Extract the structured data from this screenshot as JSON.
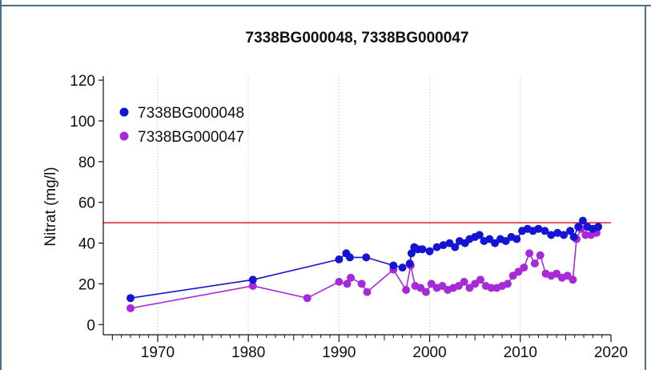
{
  "chart_data": {
    "type": "line",
    "title": "7338BG000048, 7338BG000047",
    "xlabel": "",
    "ylabel": "Nitrat (mg/l)",
    "xlim": [
      1964,
      2020
    ],
    "ylim": [
      -5,
      122
    ],
    "xticks": [
      1970,
      1980,
      1990,
      2000,
      2010,
      2020
    ],
    "yticks": [
      0,
      20,
      40,
      60,
      80,
      100,
      120
    ],
    "grid": "x-dotted",
    "legend_position": "top-left",
    "threshold": {
      "value": 50,
      "color": "#e02020"
    },
    "series": [
      {
        "name": "7338BG000048",
        "color": "#1414d2",
        "x": [
          1967,
          1980.5,
          1990,
          1990.8,
          1991.2,
          1993,
          1996,
          1997,
          1997.8,
          1998,
          1998.3,
          1998.7,
          1999.2,
          2000,
          2000.8,
          2001.5,
          2002.2,
          2002.8,
          2003.3,
          2003.9,
          2004.4,
          2005,
          2005.5,
          2006,
          2006.6,
          2007.2,
          2007.8,
          2008.4,
          2009,
          2009.6,
          2010.2,
          2010.8,
          2011.4,
          2012,
          2012.7,
          2013.4,
          2014.1,
          2014.8,
          2015.5,
          2015.9,
          2016.4,
          2016.9,
          2017.4,
          2018,
          2018.6
        ],
        "y": [
          13,
          22,
          32,
          35,
          33,
          33,
          29,
          28,
          30,
          35,
          38,
          37,
          37,
          36,
          38,
          39,
          40,
          38,
          41,
          40,
          42,
          43,
          44,
          41,
          42,
          40,
          42,
          41,
          43,
          42,
          46,
          47,
          46,
          47,
          46,
          44,
          45,
          44,
          46,
          43,
          48,
          51,
          48,
          47,
          48
        ]
      },
      {
        "name": "7338BG000047",
        "color": "#a72ad9",
        "x": [
          1967,
          1980.5,
          1986.5,
          1990,
          1990.9,
          1991.3,
          1992.5,
          1993.1,
          1996,
          1997.4,
          1997.9,
          1998.4,
          1999,
          1999.6,
          2000.2,
          2000.8,
          2001.4,
          2002,
          2002.6,
          2003.2,
          2003.8,
          2004.4,
          2005,
          2005.6,
          2006.2,
          2006.8,
          2007.4,
          2008,
          2008.6,
          2009.2,
          2009.8,
          2010.4,
          2011,
          2011.6,
          2012.2,
          2012.8,
          2013.4,
          2014,
          2014.6,
          2015.2,
          2015.8,
          2016.2,
          2016.7,
          2017.2,
          2017.8,
          2018.4
        ],
        "y": [
          8,
          19,
          13,
          21,
          20,
          23,
          20,
          16,
          27,
          17,
          29,
          19,
          18,
          16,
          20,
          18,
          19,
          17,
          18,
          19,
          21,
          18,
          20,
          22,
          19,
          18,
          18,
          19,
          20,
          24,
          26,
          28,
          35,
          30,
          34,
          25,
          24,
          25,
          23,
          24,
          22,
          42,
          47,
          44,
          44,
          45
        ]
      }
    ]
  }
}
